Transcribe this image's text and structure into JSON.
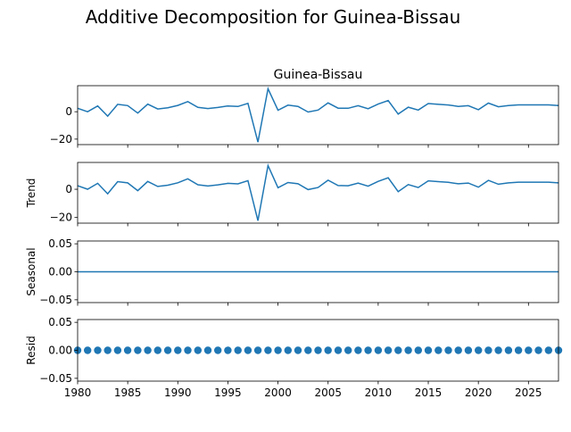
{
  "suptitle": "Additive Decomposition for Guinea-Bissau",
  "line_color": "#1f77b4",
  "chart_data": [
    {
      "type": "line",
      "title": "Guinea-Bissau",
      "ylabel": "",
      "xlim": [
        1980,
        2028
      ],
      "ylim": [
        -24,
        19
      ],
      "yticks": [
        0,
        -20
      ],
      "ytick_labels": [
        "0",
        "−20"
      ],
      "x": [
        1980,
        1981,
        1982,
        1983,
        1984,
        1985,
        1986,
        1987,
        1988,
        1989,
        1990,
        1991,
        1992,
        1993,
        1994,
        1995,
        1996,
        1997,
        1998,
        1999,
        2000,
        2001,
        2002,
        2003,
        2004,
        2005,
        2006,
        2007,
        2008,
        2009,
        2010,
        2011,
        2012,
        2013,
        2014,
        2015,
        2016,
        2017,
        2018,
        2019,
        2020,
        2021,
        2022,
        2023,
        2024,
        2025,
        2026,
        2027,
        2028
      ],
      "values": [
        2.5,
        0,
        4.2,
        -3.2,
        5.4,
        4.5,
        -1,
        5.5,
        2,
        2.9,
        4.6,
        7.4,
        3.2,
        2.3,
        3.1,
        4.2,
        3.8,
        6.1,
        -22.2,
        16.8,
        1.1,
        4.8,
        3.9,
        -0.2,
        1.2,
        6.4,
        2.6,
        2.5,
        4.4,
        2.2,
        5.6,
        8.1,
        -1.7,
        3.3,
        1.2,
        6,
        5.4,
        4.9,
        3.9,
        4.4,
        1.5,
        6.3,
        3.6,
        4.5,
        5,
        5,
        5,
        5,
        4.5
      ]
    },
    {
      "type": "line",
      "title": "",
      "ylabel": "Trend",
      "xlim": [
        1980,
        2028
      ],
      "ylim": [
        -24,
        19
      ],
      "yticks": [
        0,
        -20
      ],
      "ytick_labels": [
        "0",
        "−20"
      ],
      "x": [
        1980,
        1981,
        1982,
        1983,
        1984,
        1985,
        1986,
        1987,
        1988,
        1989,
        1990,
        1991,
        1992,
        1993,
        1994,
        1995,
        1996,
        1997,
        1998,
        1999,
        2000,
        2001,
        2002,
        2003,
        2004,
        2005,
        2006,
        2007,
        2008,
        2009,
        2010,
        2011,
        2012,
        2013,
        2014,
        2015,
        2016,
        2017,
        2018,
        2019,
        2020,
        2021,
        2022,
        2023,
        2024,
        2025,
        2026,
        2027,
        2028
      ],
      "values": [
        2.5,
        0,
        4.2,
        -3.2,
        5.4,
        4.5,
        -1,
        5.5,
        2,
        2.9,
        4.6,
        7.4,
        3.2,
        2.3,
        3.1,
        4.2,
        3.8,
        6.1,
        -22.2,
        16.8,
        1.1,
        4.8,
        3.9,
        -0.2,
        1.2,
        6.4,
        2.6,
        2.5,
        4.4,
        2.2,
        5.6,
        8.1,
        -1.7,
        3.3,
        1.2,
        6,
        5.4,
        4.9,
        3.9,
        4.4,
        1.5,
        6.3,
        3.6,
        4.5,
        5,
        5,
        5,
        5,
        4.5
      ]
    },
    {
      "type": "line",
      "title": "",
      "ylabel": "Seasonal",
      "xlim": [
        1980,
        2028
      ],
      "ylim": [
        -0.055,
        0.055
      ],
      "yticks": [
        0.05,
        0.0,
        -0.05
      ],
      "ytick_labels": [
        "0.05",
        "0.00",
        "−0.05"
      ],
      "x": [
        1980,
        2028
      ],
      "values": [
        0,
        0
      ]
    },
    {
      "type": "scatter",
      "title": "",
      "ylabel": "Resid",
      "xlim": [
        1980,
        2028
      ],
      "ylim": [
        -0.055,
        0.055
      ],
      "yticks": [
        0.05,
        0.0,
        -0.05
      ],
      "ytick_labels": [
        "0.05",
        "0.00",
        "−0.05"
      ],
      "x": [
        1980,
        1981,
        1982,
        1983,
        1984,
        1985,
        1986,
        1987,
        1988,
        1989,
        1990,
        1991,
        1992,
        1993,
        1994,
        1995,
        1996,
        1997,
        1998,
        1999,
        2000,
        2001,
        2002,
        2003,
        2004,
        2005,
        2006,
        2007,
        2008,
        2009,
        2010,
        2011,
        2012,
        2013,
        2014,
        2015,
        2016,
        2017,
        2018,
        2019,
        2020,
        2021,
        2022,
        2023,
        2024,
        2025,
        2026,
        2027,
        2028
      ],
      "values": [
        0,
        0,
        0,
        0,
        0,
        0,
        0,
        0,
        0,
        0,
        0,
        0,
        0,
        0,
        0,
        0,
        0,
        0,
        0,
        0,
        0,
        0,
        0,
        0,
        0,
        0,
        0,
        0,
        0,
        0,
        0,
        0,
        0,
        0,
        0,
        0,
        0,
        0,
        0,
        0,
        0,
        0,
        0,
        0,
        0,
        0,
        0,
        0,
        0
      ]
    }
  ],
  "xticks": [
    1980,
    1985,
    1990,
    1995,
    2000,
    2005,
    2010,
    2015,
    2020,
    2025
  ],
  "xtick_labels": [
    "1980",
    "1985",
    "1990",
    "1995",
    "2000",
    "2005",
    "2010",
    "2015",
    "2020",
    "2025"
  ]
}
